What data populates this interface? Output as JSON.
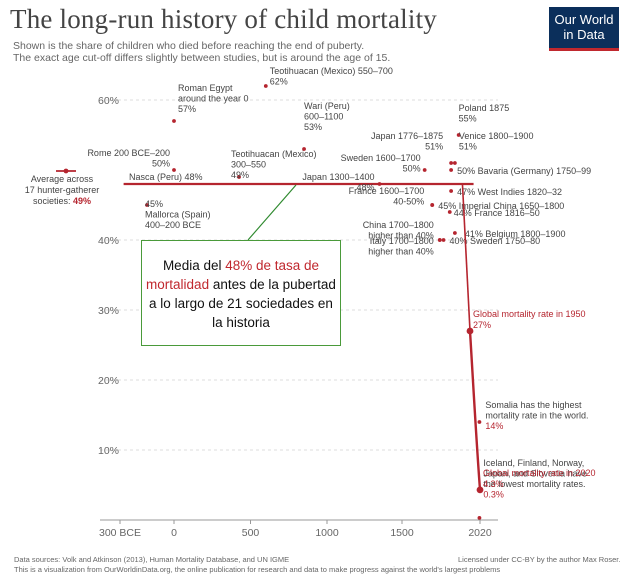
{
  "header": {
    "title": "The long-run history of child mortality",
    "subtitle_1": "Shown is the share of children who died before reaching the end of puberty.",
    "subtitle_2": "The exact age cut-off differs slightly between studies, but is around the age of 15.",
    "logo_line1": "Our World",
    "logo_line2": "in Data"
  },
  "callout": {
    "part1": "Media del ",
    "highlight": "48% de tasa de mortalidad",
    "part2": " antes de la pubertad a lo largo de 21 sociedades en la historia"
  },
  "footer": {
    "left_1": "Data sources: Volk and Atkinson (2013), Human Mortality Database, and UN IGME",
    "left_2": "This is a visualization from OurWorldinData.org, the online publication for research and data to make progress against the world's largest problems",
    "right": "Licensed under CC-BY by the author Max Roser."
  },
  "colors": {
    "accent": "#b5252f",
    "logo_bg": "#0b2f5b",
    "callout_border": "#4a9a3a"
  },
  "chart_data": {
    "type": "scatter",
    "title": "The long-run history of child mortality",
    "xlabel": "",
    "ylabel": "",
    "ylim": [
      0,
      62
    ],
    "x_ticks": [
      {
        "value": -300,
        "label": "300 BCE"
      },
      {
        "value": 0,
        "label": "0"
      },
      {
        "value": 500,
        "label": "500"
      },
      {
        "value": 1000,
        "label": "1000"
      },
      {
        "value": 1500,
        "label": "1500"
      },
      {
        "value": 2020,
        "label": "2020"
      }
    ],
    "y_ticks": [
      {
        "value": 10,
        "label": "10%"
      },
      {
        "value": 20,
        "label": "20%"
      },
      {
        "value": 30,
        "label": "30%"
      },
      {
        "value": 40,
        "label": "40%"
      },
      {
        "value": 60,
        "label": "60%"
      }
    ],
    "grid": true,
    "average": {
      "value": 48,
      "label": "Nasca (Peru) 48%"
    },
    "hunter_gatherer": {
      "value": 49,
      "label_1": "Average across",
      "label_2": "17 hunter-gatherer",
      "label_3": "societies:",
      "value_label": "49%"
    },
    "points": [
      {
        "x": 600,
        "y": 62,
        "lines": [
          "Teotihuacan (Mexico) 550–700",
          "62%"
        ]
      },
      {
        "x": 0,
        "y": 57,
        "lines": [
          "Roman Egypt",
          "around the year 0",
          "57%"
        ]
      },
      {
        "x": 0,
        "y": 50,
        "lines": [
          "Rome 200 BCE–200",
          "50%"
        ]
      },
      {
        "x": 425,
        "y": 49,
        "lines": [
          "Teotihuacan (Mexico)",
          "300–550",
          "49%"
        ]
      },
      {
        "x": 850,
        "y": 53,
        "lines": [
          "Wari (Peru)",
          "600–1100",
          "53%"
        ]
      },
      {
        "x": 1350,
        "y": 48,
        "lines": [
          "Japan 1300–1400",
          "48%"
        ]
      },
      {
        "x": -150,
        "y": 45,
        "lines": [
          "45%",
          "Mallorca (Spain)",
          "400–200 BCE"
        ]
      },
      {
        "x": 1875,
        "y": 55,
        "lines": [
          "Poland 1875",
          "55%"
        ]
      },
      {
        "x": 1825,
        "y": 51,
        "lines": [
          "Japan 1776–1875",
          "51%"
        ]
      },
      {
        "x": 1850,
        "y": 51,
        "lines": [
          "Venice 1800–1900",
          "51%"
        ]
      },
      {
        "x": 1650,
        "y": 50,
        "lines": [
          "Sweden 1600–1700",
          "50%"
        ]
      },
      {
        "x": 1825,
        "y": 50,
        "lines": [
          "50% Bavaria (Germany) 1750–99"
        ]
      },
      {
        "x": 1825,
        "y": 47,
        "lines": [
          "47% West Indies 1820–32"
        ]
      },
      {
        "x": 1700,
        "y": 45,
        "lines": [
          "France 1600–1700",
          "40-50%"
        ]
      },
      {
        "x": 1700,
        "y": 45,
        "lines": [
          "45% Imperial China 1650–1800"
        ]
      },
      {
        "x": 1816,
        "y": 44,
        "lines": [
          "44% France 1816–50"
        ]
      },
      {
        "x": 1850,
        "y": 41,
        "lines": [
          "41% Belgium 1800–1900"
        ]
      },
      {
        "x": 1750,
        "y": 40,
        "lines": [
          "China 1700–1800",
          "higher than 40%"
        ]
      },
      {
        "x": 1750,
        "y": 40,
        "lines": [
          "Italy 1700–1800",
          "higher than 40%"
        ]
      },
      {
        "x": 1775,
        "y": 40,
        "lines": [
          "40% Sweden 1750–80"
        ]
      },
      {
        "x": 2016,
        "y": 14,
        "lines": [
          "Somalia has the highest",
          "mortality rate in the world.",
          "14%"
        ]
      },
      {
        "x": 2016,
        "y": 0.3,
        "lines": [
          "Iceland, Finland, Norway,",
          "Japan, and Slovenia have",
          "the lowest mortality rates.",
          "0.3%"
        ]
      }
    ],
    "global_series": {
      "name": "Global mortality rate",
      "points": [
        {
          "x": 1950,
          "y": 27,
          "lines": [
            "Global mortality rate in 1950",
            "27%"
          ]
        },
        {
          "x": 2020,
          "y": 4.3,
          "lines": [
            "Global mortality rate in 2020",
            "4.3%"
          ]
        }
      ]
    }
  }
}
